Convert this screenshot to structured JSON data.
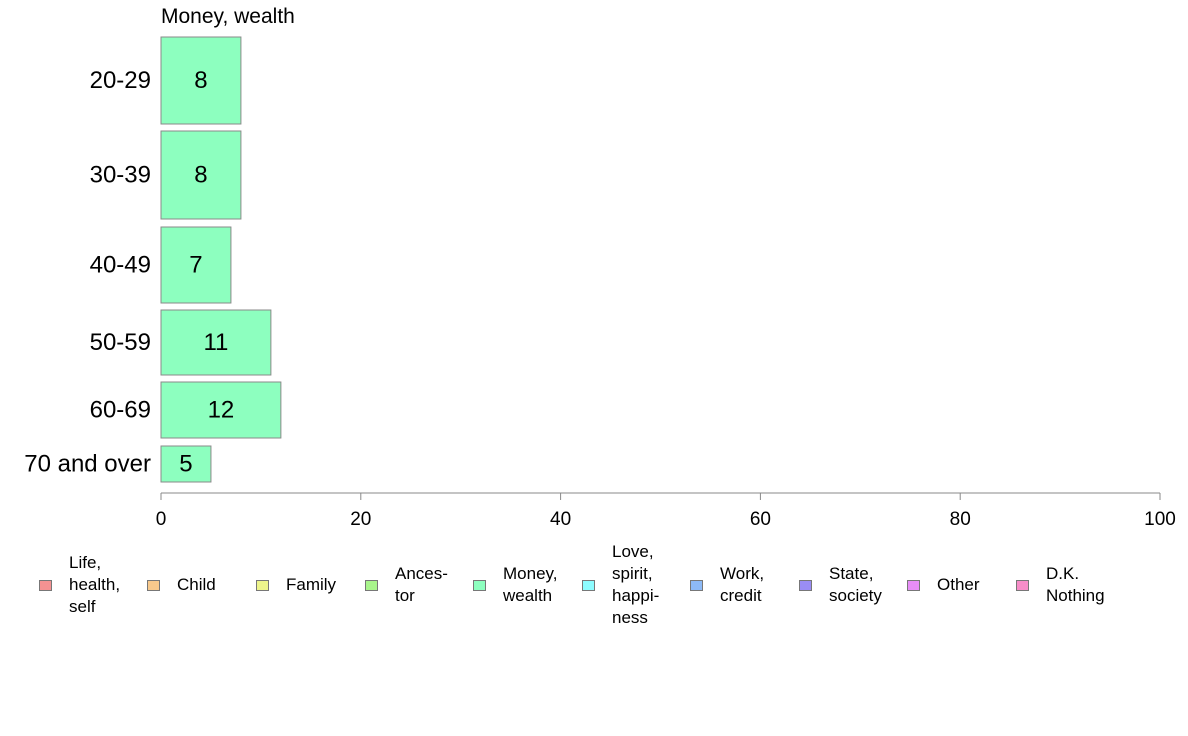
{
  "chart_data": {
    "type": "bar",
    "orientation": "horizontal",
    "title": "Money, wealth",
    "categories": [
      "20-29",
      "30-39",
      "40-49",
      "50-59",
      "60-69",
      "70 and over"
    ],
    "values": [
      8,
      8,
      7,
      11,
      12,
      5
    ],
    "value_labels": [
      "8",
      "8",
      "7",
      "11",
      "12",
      "5"
    ],
    "xlim": [
      0,
      100
    ],
    "x_ticks": [
      0,
      20,
      40,
      60,
      80,
      100
    ],
    "x_tick_labels": [
      "0",
      "20",
      "40",
      "60",
      "80",
      "100"
    ],
    "grid": false,
    "legend_position": "bottom",
    "series_color": "#8dffbf",
    "legend": [
      {
        "label": "Life,\nhealth,\nself",
        "color": "#f59292"
      },
      {
        "label": "Child",
        "color": "#f8c98c"
      },
      {
        "label": "Family",
        "color": "#eef58c"
      },
      {
        "label": "Ances-\ntor",
        "color": "#a9f58c"
      },
      {
        "label": "Money,\nwealth",
        "color": "#8dffbf"
      },
      {
        "label": "Love,\nspirit,\nhappi-\nness",
        "color": "#8dfcff"
      },
      {
        "label": "Work,\ncredit",
        "color": "#8dbaf7"
      },
      {
        "label": "State,\nsociety",
        "color": "#9a8df5"
      },
      {
        "label": "Other",
        "color": "#e78df7"
      },
      {
        "label": "D.K.\nNothing",
        "color": "#f78dc8"
      }
    ]
  }
}
